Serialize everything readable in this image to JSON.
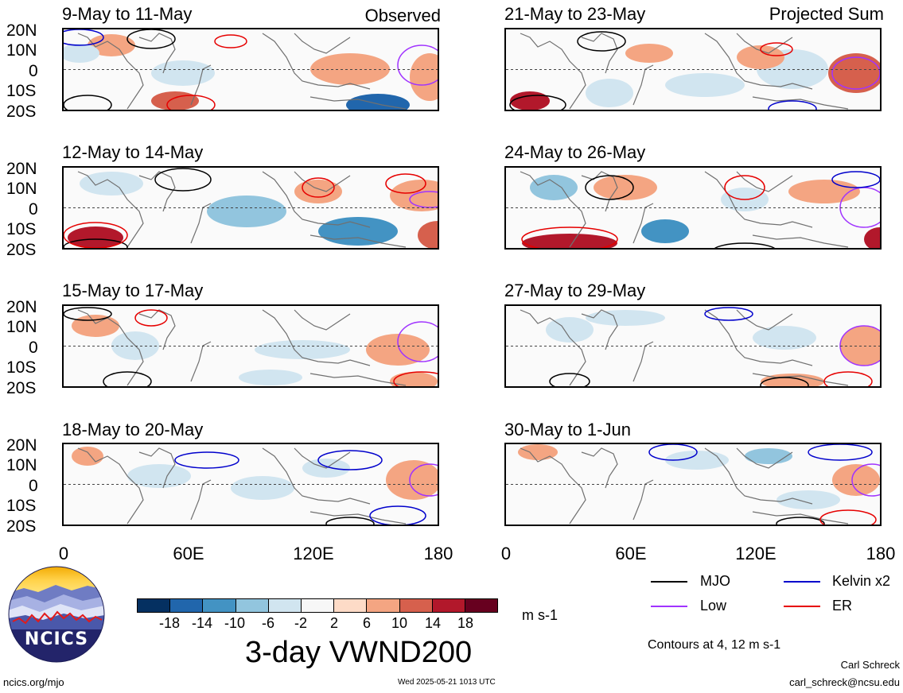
{
  "left_corner_label": "Observed",
  "right_corner_label": "Projected Sum",
  "left_panels": [
    {
      "title": "9-May to 11-May"
    },
    {
      "title": "12-May to 14-May"
    },
    {
      "title": "15-May to 17-May"
    },
    {
      "title": "18-May to 20-May"
    }
  ],
  "right_panels": [
    {
      "title": "21-May to 23-May"
    },
    {
      "title": "24-May to 26-May"
    },
    {
      "title": "27-May to 29-May"
    },
    {
      "title": "30-May to 1-Jun"
    }
  ],
  "lat_labels": [
    "20N",
    "10N",
    "0",
    "10S",
    "20S"
  ],
  "lon_labels": [
    "0",
    "60E",
    "120E",
    "180"
  ],
  "colorbar": {
    "ticks": [
      "-18",
      "-14",
      "-10",
      "-6",
      "-2",
      "2",
      "6",
      "10",
      "14",
      "18"
    ],
    "colors": [
      "#053061",
      "#2166ac",
      "#4393c3",
      "#92c5de",
      "#d1e5f0",
      "#f7f7f7",
      "#fddbc7",
      "#f4a582",
      "#d6604d",
      "#b2182b",
      "#67001f"
    ],
    "unit": "m s-1"
  },
  "main_title": "3-day VWND200",
  "legend": [
    {
      "label": "MJO",
      "color": "#000000"
    },
    {
      "label": "Kelvin x2",
      "color": "#0000cc"
    },
    {
      "label": "Low",
      "color": "#a033ff"
    },
    {
      "label": "ER",
      "color": "#e60000"
    }
  ],
  "contour_note": "Contours at 4, 12 m s-1",
  "logo_text": "NCICS",
  "footer_left": "ncics.org/mjo",
  "footer_center": "Wed 2025-05-21 1013 UTC",
  "footer_author": "Carl Schreck",
  "footer_email": "carl_schreck@ncsu.edu"
}
